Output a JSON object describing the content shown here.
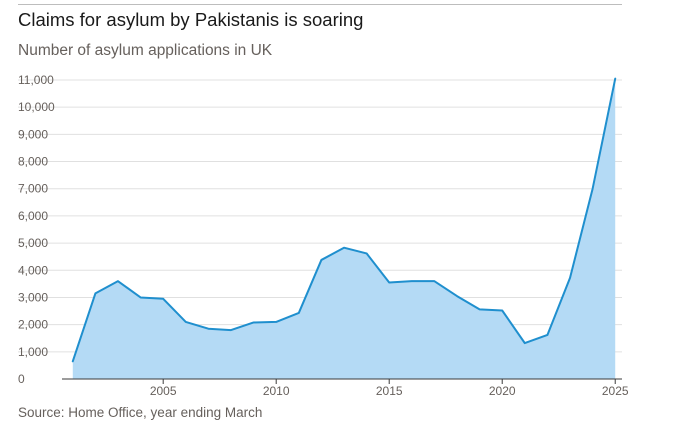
{
  "header": {
    "title": "Claims for asylum by Pakistanis is soaring",
    "subtitle": "Number of asylum applications in UK"
  },
  "footer": {
    "source": "Source: Home Office, year ending March"
  },
  "chart_data": {
    "type": "area",
    "title": "Claims for asylum by Pakistanis is soaring",
    "subtitle": "Number of asylum applications in UK",
    "xlabel": "",
    "ylabel": "",
    "x": [
      2001,
      2002,
      2003,
      2004,
      2005,
      2006,
      2007,
      2008,
      2009,
      2010,
      2011,
      2012,
      2013,
      2014,
      2015,
      2016,
      2017,
      2018,
      2019,
      2020,
      2021,
      2022,
      2023,
      2024,
      2025
    ],
    "series": [
      {
        "values": [
          650,
          3150,
          3600,
          3000,
          2950,
          2100,
          1850,
          1800,
          2080,
          2100,
          2430,
          4380,
          4830,
          4620,
          3550,
          3600,
          3600,
          3050,
          2560,
          2520,
          1320,
          1620,
          3720,
          7000,
          11050
        ]
      }
    ],
    "xlim": [
      2000.7,
      2025.3
    ],
    "ylim": [
      0,
      11000
    ],
    "y_ticks": [
      0,
      1000,
      2000,
      3000,
      4000,
      5000,
      6000,
      7000,
      8000,
      9000,
      10000,
      11000
    ],
    "y_tick_labels": [
      "0",
      "1,000",
      "2,000",
      "3,000",
      "4,000",
      "5,000",
      "6,000",
      "7,000",
      "8,000",
      "9,000",
      "10,000",
      "11,000"
    ],
    "x_ticks": [
      2005,
      2010,
      2015,
      2020,
      2025
    ],
    "x_tick_labels": [
      "2005",
      "2010",
      "2015",
      "2020",
      "2025"
    ],
    "grid": true,
    "colors": {
      "line": "#1f8fce",
      "fill": "#b4daf5",
      "grid": "#e0e0e0",
      "axis": "#3a3a3a"
    }
  }
}
